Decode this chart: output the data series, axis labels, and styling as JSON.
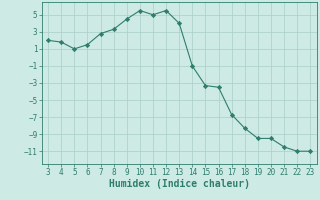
{
  "title": "",
  "xlabel": "Humidex (Indice chaleur)",
  "ylabel": "",
  "x": [
    3,
    4,
    5,
    6,
    7,
    8,
    9,
    10,
    11,
    12,
    13,
    14,
    15,
    16,
    17,
    18,
    19,
    20,
    21,
    22,
    23
  ],
  "y": [
    2,
    1.8,
    1,
    1.5,
    2.8,
    3.3,
    4.5,
    5.5,
    5,
    5.5,
    4,
    -1,
    -3.3,
    -3.5,
    -6.7,
    -8.3,
    -9.5,
    -9.5,
    -10.5,
    -11,
    -11
  ],
  "line_color": "#2e7d6e",
  "marker": "D",
  "marker_size": 2.2,
  "background_color": "#ceeae4",
  "grid_color": "#a8cfc8",
  "xlim": [
    2.5,
    23.5
  ],
  "ylim": [
    -12.5,
    6.5
  ],
  "yticks": [
    5,
    3,
    1,
    -1,
    -3,
    -5,
    -7,
    -9,
    -11
  ],
  "xticks": [
    3,
    4,
    5,
    6,
    7,
    8,
    9,
    10,
    11,
    12,
    13,
    14,
    15,
    16,
    17,
    18,
    19,
    20,
    21,
    22,
    23
  ],
  "tick_fontsize": 5.5,
  "label_fontsize": 7.0
}
